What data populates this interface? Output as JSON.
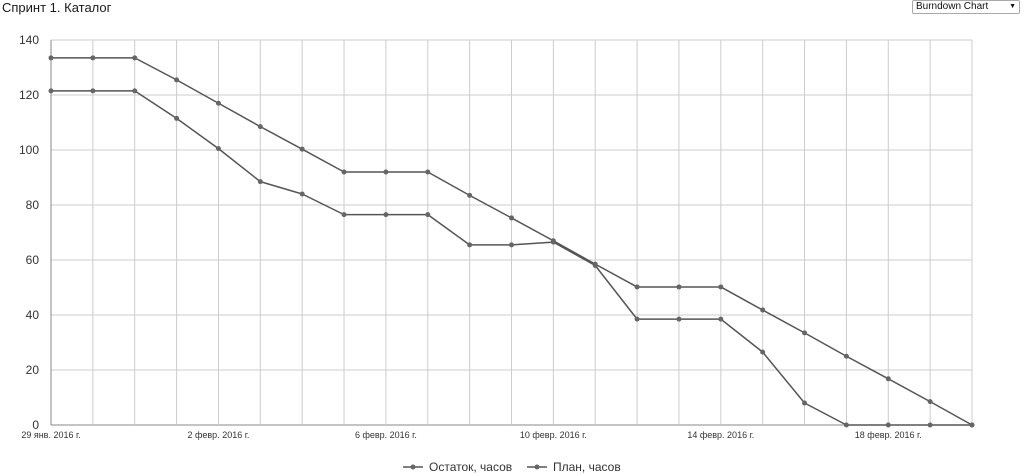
{
  "header": {
    "title": "Спринт 1. Каталог",
    "chart_selector": {
      "selected": "Burndown Chart",
      "arrow_icon": "triangle-down-icon"
    }
  },
  "colors": {
    "line": "#555555",
    "point": "#666666",
    "gridline": "#cccccc",
    "axis": "#888888"
  },
  "chart_data": {
    "type": "line",
    "x": [
      "29 янв. 2016 г.",
      "30 янв. 2016 г.",
      "31 янв. 2016 г.",
      "1 февр. 2016 г.",
      "2 февр. 2016 г.",
      "3 февр. 2016 г.",
      "4 февр. 2016 г.",
      "5 февр. 2016 г.",
      "6 февр. 2016 г.",
      "7 февр. 2016 г.",
      "8 февр. 2016 г.",
      "9 февр. 2016 г.",
      "10 февр. 2016 г.",
      "11 февр. 2016 г.",
      "12 февр. 2016 г.",
      "13 февр. 2016 г.",
      "14 февр. 2016 г.",
      "15 февр. 2016 г.",
      "16 февр. 2016 г.",
      "17 февр. 2016 г.",
      "18 февр. 2016 г.",
      "19 февр. 2016 г.",
      "20 февр. 2016 г."
    ],
    "x_tick_labels": [
      "29 янв. 2016 г.",
      "2 февр. 2016 г.",
      "6 февр. 2016 г.",
      "10 февр. 2016 г.",
      "14 февр. 2016 г.",
      "18 февр. 2016 г."
    ],
    "x_tick_positions": [
      0,
      4,
      8,
      12,
      16,
      20
    ],
    "series": [
      {
        "name": "Остаток, часов",
        "values": [
          121.5,
          121.5,
          121.5,
          111.5,
          100.5,
          88.5,
          84,
          76.5,
          76.5,
          76.5,
          65.5,
          65.5,
          66.5,
          58,
          38.5,
          38.5,
          38.5,
          26.5,
          8,
          0,
          0,
          0,
          0
        ]
      },
      {
        "name": "План, часов",
        "values": [
          133.5,
          133.5,
          133.5,
          125.5,
          117,
          108.5,
          100.3,
          92,
          92,
          92,
          83.5,
          75.3,
          67,
          58.5,
          50.2,
          50.2,
          50.2,
          41.8,
          33.5,
          25,
          16.8,
          8.5,
          0
        ]
      }
    ],
    "ylim": [
      0,
      140
    ],
    "y_ticks": [
      0,
      20,
      40,
      60,
      80,
      100,
      120,
      140
    ],
    "grid": true,
    "legend_position": "bottom"
  }
}
